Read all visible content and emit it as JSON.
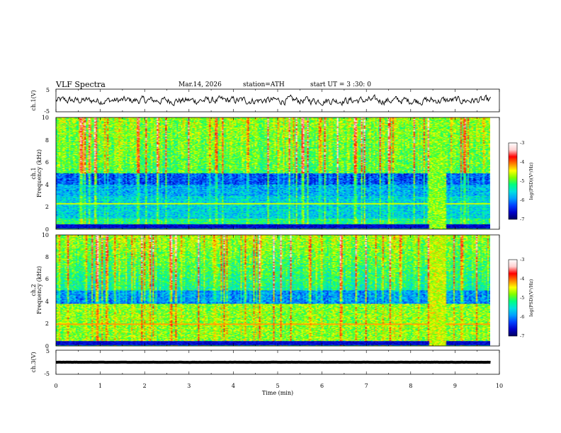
{
  "header": {
    "title": "VLF  Spectra",
    "date": "Mar.14, 2026",
    "station": "station=ATH",
    "start_ut": "start  UT =   3 :30: 0"
  },
  "colors": {
    "background": "#ffffff",
    "colormap": [
      "#000060",
      "#0000c8",
      "#0040ff",
      "#00a0ff",
      "#00e0e0",
      "#00ff80",
      "#80ff00",
      "#ffff00",
      "#ff8000",
      "#ff0000",
      "#ffd0d0",
      "#ffffff"
    ]
  },
  "chart_data": [
    {
      "type": "line",
      "name": "ch1-waveform",
      "ylabel": "ch.1(V)",
      "ylim": [
        -5,
        5
      ],
      "yticks": [
        "5",
        "-5"
      ],
      "xlim": [
        0,
        10
      ],
      "x_end": 9.8,
      "baseline": 0,
      "amplitude": 1.2
    },
    {
      "type": "heatmap",
      "name": "ch1-spectrogram",
      "ylabel": "ch.1\nFrequency (kHz)",
      "ylabel_channel": "ch.1",
      "ylabel_freq": "Frequency (kHz)",
      "ylim": [
        0,
        10
      ],
      "yticks": [
        "0",
        "2",
        "4",
        "6",
        "8",
        "10"
      ],
      "xlim": [
        0,
        10
      ],
      "x_end": 9.8,
      "colorbar": {
        "label": "log(PSD)(V²/Hz)",
        "ticks": [
          "-3",
          "-4",
          "-5",
          "-6",
          "-7"
        ],
        "range": [
          -7,
          -3
        ]
      },
      "features": [
        {
          "desc": "strong band",
          "freq_khz": [
            4.0,
            5.0
          ],
          "level": -6.3
        },
        {
          "desc": "persistent line",
          "freq_khz": 2.3,
          "level": -4.6
        },
        {
          "desc": "noise burst",
          "time_min": [
            8.4,
            8.8
          ],
          "freq_khz": [
            0,
            10
          ],
          "level": -4.8
        }
      ]
    },
    {
      "type": "heatmap",
      "name": "ch2-spectrogram",
      "ylabel": "ch.2\nFrequency (kHz)",
      "ylabel_channel": "ch.2",
      "ylabel_freq": "Frequency (kHz)",
      "ylim": [
        0,
        10
      ],
      "yticks": [
        "0",
        "2",
        "4",
        "6",
        "8",
        "10"
      ],
      "xlim": [
        0,
        10
      ],
      "x_end": 9.8,
      "colorbar": {
        "label": "log(PSD)(V²/Hz)",
        "ticks": [
          "-3",
          "-4",
          "-5",
          "-6",
          "-7"
        ],
        "range": [
          -7,
          -3
        ]
      },
      "features": [
        {
          "desc": "strong band",
          "freq_khz": [
            0.5,
            3.5
          ],
          "level": -4.8
        },
        {
          "desc": "persistent line",
          "freq_khz": 2.0,
          "level": -4.2
        },
        {
          "desc": "noise burst",
          "time_min": [
            8.4,
            8.8
          ],
          "freq_khz": [
            0,
            10
          ],
          "level": -4.6
        }
      ]
    },
    {
      "type": "line",
      "name": "ch3-waveform",
      "ylabel": "ch.3(V)",
      "ylim": [
        -5,
        5
      ],
      "yticks": [
        "5",
        "-5"
      ],
      "xlim": [
        0,
        10
      ],
      "x_end": 9.8,
      "baseline": 0,
      "amplitude": 0.05
    }
  ],
  "xaxis": {
    "label": "Time  (min)",
    "ticks": [
      "0",
      "1",
      "2",
      "3",
      "4",
      "5",
      "6",
      "7",
      "8",
      "9",
      "10"
    ]
  }
}
